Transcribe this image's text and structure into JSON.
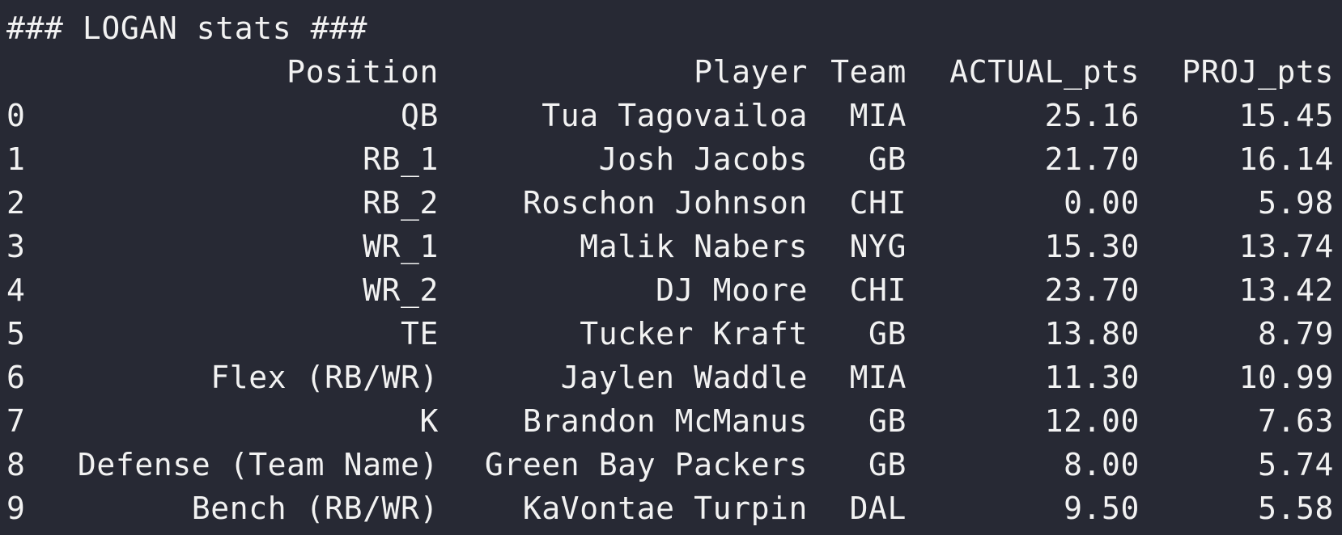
{
  "title": "### LOGAN stats ###",
  "columns": {
    "index": "",
    "position": "Position",
    "player": "Player",
    "team": "Team",
    "actual": "ACTUAL_pts",
    "proj": "PROJ_pts"
  },
  "rows": [
    {
      "index": "0",
      "position": "QB",
      "player": "Tua Tagovailoa",
      "team": "MIA",
      "actual": "25.16",
      "proj": "15.45"
    },
    {
      "index": "1",
      "position": "RB_1",
      "player": "Josh Jacobs",
      "team": "GB",
      "actual": "21.70",
      "proj": "16.14"
    },
    {
      "index": "2",
      "position": "RB_2",
      "player": "Roschon Johnson",
      "team": "CHI",
      "actual": "0.00",
      "proj": "5.98"
    },
    {
      "index": "3",
      "position": "WR_1",
      "player": "Malik Nabers",
      "team": "NYG",
      "actual": "15.30",
      "proj": "13.74"
    },
    {
      "index": "4",
      "position": "WR_2",
      "player": "DJ Moore",
      "team": "CHI",
      "actual": "23.70",
      "proj": "13.42"
    },
    {
      "index": "5",
      "position": "TE",
      "player": "Tucker Kraft",
      "team": "GB",
      "actual": "13.80",
      "proj": "8.79"
    },
    {
      "index": "6",
      "position": "Flex (RB/WR)",
      "player": "Jaylen Waddle",
      "team": "MIA",
      "actual": "11.30",
      "proj": "10.99"
    },
    {
      "index": "7",
      "position": "K",
      "player": "Brandon McManus",
      "team": "GB",
      "actual": "12.00",
      "proj": "7.63"
    },
    {
      "index": "8",
      "position": "Defense (Team Name)",
      "player": "Green Bay Packers",
      "team": "GB",
      "actual": "8.00",
      "proj": "5.74"
    },
    {
      "index": "9",
      "position": "Bench (RB/WR)",
      "player": "KaVontae Turpin",
      "team": "DAL",
      "actual": "9.50",
      "proj": "5.58"
    }
  ]
}
